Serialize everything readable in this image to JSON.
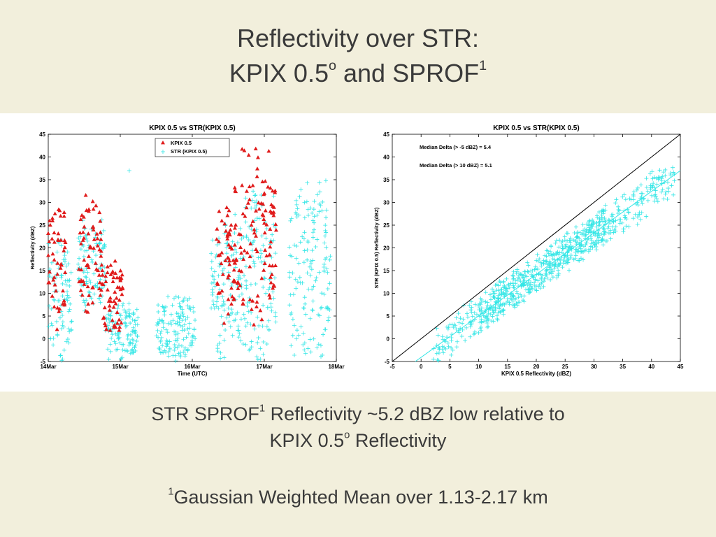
{
  "slide": {
    "title_line1": "Reflectivity over STR:",
    "title_line2_prefix": "KPIX 0.5",
    "title_line2_sup1": "o",
    "title_line2_mid": " and SPROF",
    "title_line2_sup2": "1",
    "summary_line1_prefix": "STR SPROF",
    "summary_line1_sup": "1",
    "summary_line1_rest": " Reflectivity ~5.2 dBZ low relative to",
    "summary_line2_prefix": "KPIX 0.5",
    "summary_line2_sup": "o",
    "summary_line2_rest": " Reflectivity",
    "footnote_sup": "1",
    "footnote_text": "Gaussian Weighted Mean over 1.13-2.17 km"
  },
  "colors": {
    "kpix": "#e01b1b",
    "str": "#33e6e6",
    "one_to_one": "#000000",
    "fit": "#33e6e6"
  },
  "chart_data": [
    {
      "type": "scatter",
      "title": "KPIX 0.5 vs STR(KPIX 0.5)",
      "xlabel": "Time (UTC)",
      "ylabel": "Reflectivity (dBZ)",
      "x_type": "date",
      "x_ticks": [
        "14Mar",
        "15Mar",
        "16Mar",
        "17Mar",
        "18Mar"
      ],
      "y_ticks": [
        -5,
        0,
        5,
        10,
        15,
        20,
        25,
        30,
        35,
        40,
        45
      ],
      "ylim": [
        -5,
        45
      ],
      "legend_position": "top-center",
      "series": [
        {
          "name": "KPIX 0.5",
          "marker": "triangle",
          "clusters": [
            {
              "start": "14Mar 00:00",
              "end": "14Mar 06:00",
              "ymin": 2,
              "ymax": 31
            },
            {
              "start": "14Mar 10:00",
              "end": "14Mar 18:00",
              "ymin": 5,
              "ymax": 32
            },
            {
              "start": "14Mar 18:00",
              "end": "15Mar 01:00",
              "ymin": 0,
              "ymax": 18
            },
            {
              "start": "16Mar 08:00",
              "end": "16Mar 14:00",
              "ymin": 2,
              "ymax": 30
            },
            {
              "start": "16Mar 14:00",
              "end": "17Mar 04:00",
              "ymin": 3,
              "ymax": 43
            }
          ]
        },
        {
          "name": "STR (KPIX 0.5)",
          "marker": "plus",
          "clusters": [
            {
              "start": "14Mar 00:00",
              "end": "14Mar 08:00",
              "ymin": -5,
              "ymax": 22
            },
            {
              "start": "14Mar 10:00",
              "end": "14Mar 19:00",
              "ymin": 6,
              "ymax": 27
            },
            {
              "start": "14Mar 19:00",
              "end": "15Mar 06:00",
              "ymin": -5,
              "ymax": 8
            },
            {
              "start": "15Mar 12:00",
              "end": "16Mar 01:00",
              "ymin": -5,
              "ymax": 10
            },
            {
              "start": "16Mar 06:00",
              "end": "16Mar 14:00",
              "ymin": -5,
              "ymax": 27
            },
            {
              "start": "16Mar 14:00",
              "end": "17Mar 04:00",
              "ymin": -5,
              "ymax": 33
            },
            {
              "start": "17Mar 08:00",
              "end": "17Mar 22:00",
              "ymin": -4,
              "ymax": 35
            }
          ],
          "outliers": [
            {
              "x": "15Mar 03:00",
              "y": 37
            }
          ]
        }
      ]
    },
    {
      "type": "scatter",
      "title": "KPIX 0.5 vs STR(KPIX 0.5)",
      "xlabel": "KPIX 0.5 Reflectivity (dBZ)",
      "ylabel": "STR (KPIX 0.5) Reflectivity (dBZ)",
      "x_ticks": [
        -5,
        0,
        5,
        10,
        15,
        20,
        25,
        30,
        35,
        40,
        45
      ],
      "y_ticks": [
        -5,
        0,
        5,
        10,
        15,
        20,
        25,
        30,
        35,
        40,
        45
      ],
      "xlim": [
        -5,
        45
      ],
      "ylim": [
        -5,
        45
      ],
      "annotations": [
        "Median Delta (> -5 dBZ) = 5.4",
        "Median Delta (> 10 dBZ) = 5.1"
      ],
      "lines": [
        {
          "kind": "one-to-one",
          "x": [
            -5,
            45
          ],
          "y": [
            -5,
            45
          ]
        },
        {
          "kind": "fit",
          "x": [
            -1,
            45
          ],
          "y": [
            -5,
            37
          ]
        }
      ],
      "series": [
        {
          "name": "STR (KPIX 0.5)",
          "marker": "plus",
          "relation": "y ≈ 0.91x − 4.1",
          "x_range": [
            2,
            44
          ],
          "scatter_spread": 3.5
        }
      ]
    }
  ]
}
